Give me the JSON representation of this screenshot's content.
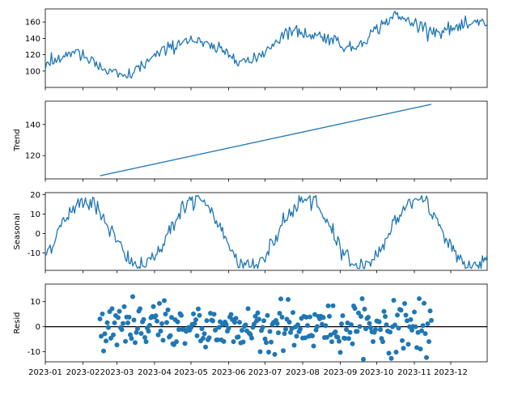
{
  "colors": {
    "series": "#1f77b4",
    "zero_line": "#000000",
    "axes": "#000000"
  },
  "x_axis": {
    "start": "2023-01-01",
    "end": "2023-12-31",
    "tick_labels": [
      "2023-01",
      "2023-02",
      "2023-03",
      "2023-04",
      "2023-05",
      "2023-06",
      "2023-07",
      "2023-08",
      "2023-09",
      "2023-10",
      "2023-11",
      "2023-12"
    ]
  },
  "chart_data": [
    {
      "type": "line",
      "panel": "observed",
      "ylabel": "",
      "ylim": [
        80,
        176
      ],
      "yticks": [
        100,
        120,
        140,
        160
      ],
      "x_range": [
        "2023-01-01",
        "2023-12-31"
      ],
      "description": "daily observed series = trend + seasonal + residual",
      "anchor_points": [
        {
          "date": "2023-01-01",
          "y": 105
        },
        {
          "date": "2023-01-24",
          "y": 125
        },
        {
          "date": "2023-02-20",
          "y": 100
        },
        {
          "date": "2023-03-08",
          "y": 92
        },
        {
          "date": "2023-04-01",
          "y": 118
        },
        {
          "date": "2023-04-28",
          "y": 140
        },
        {
          "date": "2023-05-20",
          "y": 128
        },
        {
          "date": "2023-06-20",
          "y": 110
        },
        {
          "date": "2023-07-20",
          "y": 150
        },
        {
          "date": "2023-08-25",
          "y": 140
        },
        {
          "date": "2023-09-10",
          "y": 126
        },
        {
          "date": "2023-10-15",
          "y": 168
        },
        {
          "date": "2023-11-20",
          "y": 148
        },
        {
          "date": "2023-12-31",
          "y": 160
        }
      ],
      "grid": false
    },
    {
      "type": "line",
      "panel": "trend",
      "ylabel": "Trend",
      "ylim": [
        105,
        155
      ],
      "yticks": [
        120,
        140
      ],
      "x_range": [
        "2023-02-15",
        "2023-11-15"
      ],
      "y_range": [
        107,
        153
      ],
      "grid": false
    },
    {
      "type": "line",
      "panel": "seasonal",
      "ylabel": "Seasonal",
      "ylim": [
        -19,
        21
      ],
      "yticks": [
        -10,
        0,
        10,
        20
      ],
      "period_days": 91,
      "amplitude": 17,
      "grid": false
    },
    {
      "type": "scatter",
      "panel": "resid",
      "ylabel": "Resid",
      "ylim": [
        -14,
        17
      ],
      "yticks": [
        -10,
        0,
        10
      ],
      "x_range": [
        "2023-02-15",
        "2023-11-15"
      ],
      "y_range": [
        -13,
        16
      ],
      "reference_line": 0,
      "grid": false
    }
  ]
}
